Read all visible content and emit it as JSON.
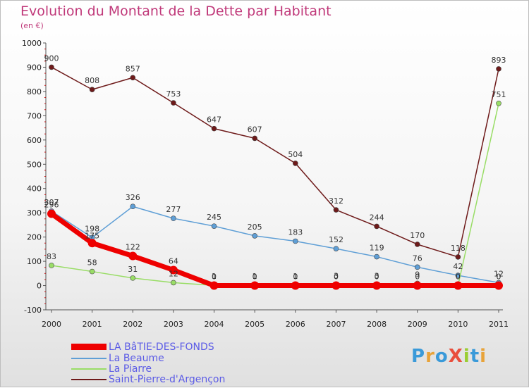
{
  "title": "Evolution du Montant de la Dette par Habitant",
  "subtitle": "(en €)",
  "logo": {
    "text": "ProXiti",
    "colors": [
      "#3a9ad9",
      "#e8a33a",
      "#3a9ad9",
      "#e94e3c",
      "#9acd32",
      "#3a9ad9",
      "#e8a33a"
    ]
  },
  "chart_data": {
    "type": "line",
    "x": [
      "2000",
      "2001",
      "2002",
      "2003",
      "2004",
      "2005",
      "2006",
      "2007",
      "2008",
      "2009",
      "2010",
      "2011"
    ],
    "ylim": [
      -100,
      1000
    ],
    "yticks": [
      -100,
      0,
      100,
      200,
      300,
      400,
      500,
      600,
      700,
      800,
      900,
      1000
    ],
    "grid": false,
    "legend": "bottom-left",
    "series": [
      {
        "name": "LA BâTIE-DES-FONDS",
        "color": "#ee0000",
        "values": [
          296,
          175,
          122,
          64,
          0,
          0,
          0,
          0,
          0,
          0,
          0,
          0
        ],
        "labels": [
          "296",
          "175",
          "122",
          "64",
          "0",
          "0",
          "0",
          "0",
          "0",
          "0",
          "0",
          "0"
        ]
      },
      {
        "name": "La Beaume",
        "color": "#5f9fd6",
        "values": [
          307,
          198,
          326,
          277,
          245,
          205,
          183,
          152,
          119,
          76,
          42,
          12
        ],
        "labels": [
          "307",
          "198",
          "326",
          "277",
          "245",
          "205",
          "183",
          "152",
          "119",
          "76",
          "42",
          "12"
        ]
      },
      {
        "name": "La Piarre",
        "color": "#99dd66",
        "values": [
          83,
          58,
          31,
          12,
          1,
          1,
          1,
          3,
          3,
          9,
          0,
          751
        ],
        "labels": [
          "83",
          "58",
          "31",
          "12",
          "1",
          "1",
          "1",
          "3",
          "3",
          "9",
          "0",
          "751"
        ]
      },
      {
        "name": "Saint-Pierre-d'Argençon",
        "color": "#6e1a1a",
        "values": [
          900,
          808,
          857,
          753,
          647,
          607,
          504,
          312,
          244,
          170,
          118,
          893
        ],
        "labels": [
          "900",
          "808",
          "857",
          "753",
          "647",
          "607",
          "504",
          "312",
          "244",
          "170",
          "118",
          "893"
        ]
      }
    ]
  }
}
